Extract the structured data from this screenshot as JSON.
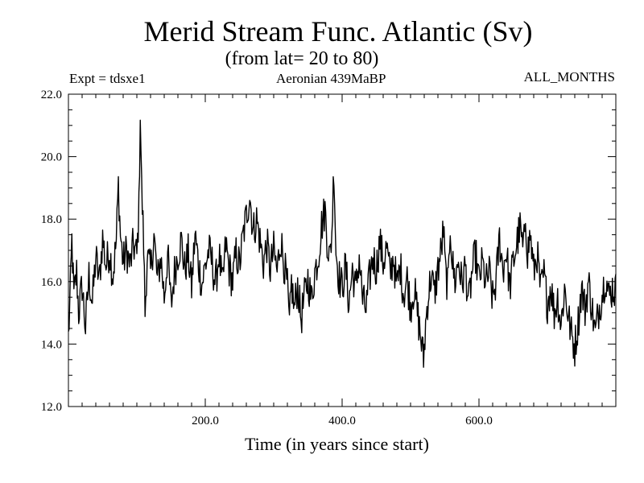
{
  "chart_data": {
    "type": "line",
    "title": "Merid Stream Func. Atlantic (Sv)",
    "subtitle": "(from lat= 20 to 80)",
    "annotations": {
      "left": "Expt = tdsxe1",
      "center": "Aeronian 439MaBP",
      "right": "ALL_MONTHS"
    },
    "xlabel": "Time (in years since start)",
    "ylabel": "",
    "xlim": [
      0,
      800
    ],
    "ylim": [
      12,
      22
    ],
    "xticks": [
      200,
      400,
      600
    ],
    "xtick_labels": [
      "200.0",
      "400.0",
      "600.0"
    ],
    "yticks": [
      12,
      14,
      16,
      18,
      20,
      22
    ],
    "ytick_labels": [
      "12.0",
      "14.0",
      "16.0",
      "18.0",
      "20.0",
      "22.0"
    ],
    "x_minor_step": 20,
    "y_minor_step": 0.5,
    "grid": false,
    "anchors": [
      [
        0,
        14.2
      ],
      [
        3,
        15.8
      ],
      [
        5,
        17.3
      ],
      [
        8,
        15.5
      ],
      [
        12,
        16.3
      ],
      [
        15,
        15.0
      ],
      [
        20,
        15.9
      ],
      [
        25,
        14.5
      ],
      [
        30,
        16.2
      ],
      [
        35,
        15.3
      ],
      [
        40,
        16.8
      ],
      [
        45,
        16.0
      ],
      [
        50,
        17.4
      ],
      [
        55,
        16.5
      ],
      [
        60,
        17.0
      ],
      [
        65,
        16.2
      ],
      [
        70,
        17.3
      ],
      [
        73,
        19.1
      ],
      [
        76,
        17.5
      ],
      [
        80,
        16.6
      ],
      [
        85,
        17.0
      ],
      [
        90,
        16.5
      ],
      [
        95,
        17.2
      ],
      [
        100,
        16.8
      ],
      [
        103,
        18.3
      ],
      [
        105,
        21.5
      ],
      [
        107,
        19.0
      ],
      [
        110,
        17.2
      ],
      [
        112,
        15.0
      ],
      [
        115,
        16.8
      ],
      [
        120,
        16.3
      ],
      [
        125,
        17.5
      ],
      [
        130,
        16.0
      ],
      [
        135,
        16.8
      ],
      [
        140,
        15.5
      ],
      [
        145,
        16.9
      ],
      [
        150,
        15.2
      ],
      [
        155,
        16.3
      ],
      [
        160,
        16.9
      ],
      [
        165,
        17.3
      ],
      [
        170,
        16.4
      ],
      [
        175,
        16.9
      ],
      [
        180,
        15.8
      ],
      [
        185,
        17.5
      ],
      [
        190,
        16.6
      ],
      [
        195,
        15.9
      ],
      [
        200,
        16.5
      ],
      [
        205,
        17.0
      ],
      [
        210,
        16.6
      ],
      [
        215,
        15.9
      ],
      [
        220,
        16.9
      ],
      [
        225,
        15.8
      ],
      [
        230,
        17.2
      ],
      [
        235,
        16.4
      ],
      [
        240,
        16.0
      ],
      [
        245,
        16.9
      ],
      [
        250,
        16.5
      ],
      [
        255,
        17.4
      ],
      [
        260,
        18.1
      ],
      [
        265,
        18.8
      ],
      [
        270,
        17.6
      ],
      [
        275,
        18.0
      ],
      [
        280,
        17.3
      ],
      [
        285,
        16.6
      ],
      [
        290,
        17.2
      ],
      [
        295,
        16.4
      ],
      [
        300,
        17.0
      ],
      [
        305,
        16.3
      ],
      [
        310,
        17.4
      ],
      [
        315,
        16.6
      ],
      [
        320,
        15.8
      ],
      [
        323,
        14.5
      ],
      [
        326,
        16.0
      ],
      [
        330,
        15.1
      ],
      [
        335,
        15.9
      ],
      [
        340,
        14.8
      ],
      [
        345,
        15.5
      ],
      [
        350,
        16.1
      ],
      [
        355,
        15.4
      ],
      [
        360,
        16.3
      ],
      [
        365,
        16.8
      ],
      [
        370,
        17.8
      ],
      [
        375,
        18.3
      ],
      [
        378,
        17.4
      ],
      [
        382,
        16.7
      ],
      [
        385,
        17.6
      ],
      [
        388,
        19.7
      ],
      [
        391,
        17.0
      ],
      [
        395,
        16.2
      ],
      [
        400,
        15.8
      ],
      [
        405,
        16.5
      ],
      [
        410,
        15.3
      ],
      [
        415,
        16.4
      ],
      [
        420,
        15.7
      ],
      [
        425,
        16.8
      ],
      [
        430,
        15.4
      ],
      [
        435,
        15.1
      ],
      [
        440,
        16.1
      ],
      [
        445,
        16.8
      ],
      [
        450,
        16.4
      ],
      [
        455,
        17.3
      ],
      [
        460,
        16.6
      ],
      [
        465,
        17.1
      ],
      [
        470,
        16.2
      ],
      [
        475,
        16.8
      ],
      [
        480,
        15.8
      ],
      [
        485,
        16.5
      ],
      [
        490,
        15.6
      ],
      [
        495,
        16.1
      ],
      [
        500,
        15.2
      ],
      [
        505,
        15.8
      ],
      [
        510,
        15.0
      ],
      [
        515,
        14.2
      ],
      [
        519,
        13.5
      ],
      [
        522,
        14.6
      ],
      [
        525,
        15.4
      ],
      [
        530,
        16.2
      ],
      [
        535,
        15.6
      ],
      [
        540,
        16.4
      ],
      [
        545,
        17.0
      ],
      [
        548,
        17.7
      ],
      [
        551,
        16.3
      ],
      [
        555,
        15.8
      ],
      [
        558,
        17.9
      ],
      [
        561,
        16.6
      ],
      [
        565,
        16.0
      ],
      [
        570,
        16.7
      ],
      [
        575,
        15.9
      ],
      [
        580,
        16.5
      ],
      [
        585,
        15.3
      ],
      [
        590,
        16.3
      ],
      [
        595,
        16.9
      ],
      [
        600,
        16.0
      ],
      [
        605,
        16.6
      ],
      [
        610,
        15.9
      ],
      [
        615,
        16.3
      ],
      [
        620,
        15.4
      ],
      [
        625,
        16.0
      ],
      [
        630,
        17.4
      ],
      [
        635,
        16.4
      ],
      [
        640,
        17.0
      ],
      [
        645,
        15.8
      ],
      [
        650,
        16.6
      ],
      [
        655,
        17.2
      ],
      [
        660,
        17.7
      ],
      [
        665,
        16.9
      ],
      [
        668,
        18.2
      ],
      [
        671,
        16.9
      ],
      [
        675,
        17.5
      ],
      [
        680,
        16.3
      ],
      [
        685,
        16.9
      ],
      [
        690,
        15.7
      ],
      [
        695,
        16.2
      ],
      [
        700,
        15.3
      ],
      [
        705,
        15.9
      ],
      [
        710,
        15.0
      ],
      [
        715,
        15.5
      ],
      [
        720,
        14.6
      ],
      [
        725,
        15.8
      ],
      [
        730,
        15.0
      ],
      [
        735,
        14.3
      ],
      [
        740,
        13.9
      ],
      [
        745,
        14.7
      ],
      [
        750,
        15.8
      ],
      [
        755,
        15.1
      ],
      [
        760,
        16.0
      ],
      [
        765,
        15.2
      ],
      [
        770,
        14.3
      ],
      [
        775,
        15.1
      ],
      [
        780,
        15.6
      ],
      [
        785,
        16.2
      ],
      [
        790,
        15.5
      ],
      [
        795,
        15.8
      ],
      [
        800,
        15.7
      ]
    ]
  }
}
